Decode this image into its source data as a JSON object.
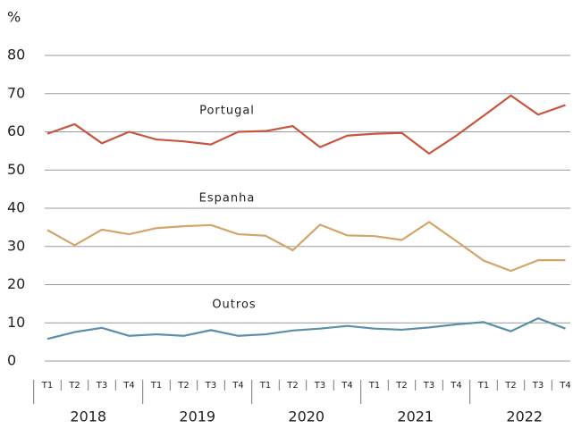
{
  "chart_data": {
    "type": "line",
    "ylabel": "%",
    "categories": [
      "T1",
      "T2",
      "T3",
      "T4",
      "T1",
      "T2",
      "T3",
      "T4",
      "T1",
      "T2",
      "T3",
      "T4",
      "T1",
      "T2",
      "T3",
      "T4",
      "T1",
      "T2",
      "T3",
      "T4"
    ],
    "groups": [
      "2018",
      "2019",
      "2020",
      "2021",
      "2022"
    ],
    "series": [
      {
        "name": "Portugal",
        "color": "#c8553d",
        "values": [
          59.5,
          62,
          57,
          60,
          58,
          57.5,
          56.7,
          60,
          60.2,
          61.5,
          56,
          59,
          59.5,
          59.7,
          54.3,
          59,
          64.2,
          69.5,
          64.5,
          67
        ]
      },
      {
        "name": "Espanha",
        "color": "#d4a56a",
        "values": [
          34.3,
          30.3,
          34.4,
          33.2,
          34.8,
          35.3,
          35.6,
          33.2,
          32.8,
          29,
          35.7,
          32.9,
          32.7,
          31.7,
          36.4,
          31.4,
          26.3,
          23.6,
          26.4,
          26.4
        ]
      },
      {
        "name": "Outros",
        "color": "#5a8fa8",
        "values": [
          5.8,
          7.6,
          8.7,
          6.6,
          7,
          6.6,
          8.1,
          6.6,
          7,
          8,
          8.5,
          9.2,
          8.5,
          8.2,
          8.8,
          9.6,
          10.2,
          7.8,
          11.2,
          8.5
        ]
      }
    ],
    "ylim": [
      0,
      80
    ],
    "yticks": [
      0,
      10,
      20,
      30,
      40,
      50,
      60,
      70,
      80
    ],
    "grid": true
  }
}
